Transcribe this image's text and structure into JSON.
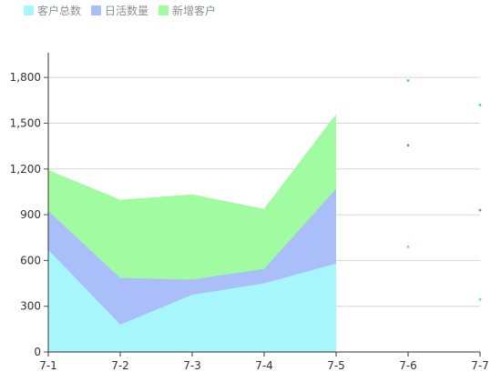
{
  "chart_data": {
    "type": "area",
    "stacked": true,
    "categories": [
      "7-1",
      "7-2",
      "7-3",
      "7-4",
      "7-5",
      "7-6",
      "7-7"
    ],
    "series": [
      {
        "name": "客户总数",
        "color": "#a6f6fb",
        "values": [
          670,
          180,
          375,
          450,
          580,
          690,
          345
        ]
      },
      {
        "name": "日活数量",
        "color": "#aabff9",
        "values": [
          255,
          305,
          100,
          95,
          490,
          665,
          585
        ]
      },
      {
        "name": "新增客户",
        "color": "#a1fba1",
        "values": [
          265,
          510,
          555,
          390,
          485,
          425,
          690
        ]
      }
    ],
    "area_until_index": 4,
    "yticks": [
      "0",
      "300",
      "600",
      "900",
      "1,200",
      "1,500",
      "1,800"
    ],
    "ylim": [
      0,
      1950
    ],
    "grid": true,
    "legend_position": "top-left",
    "title": "",
    "xlabel": "",
    "ylabel": ""
  }
}
